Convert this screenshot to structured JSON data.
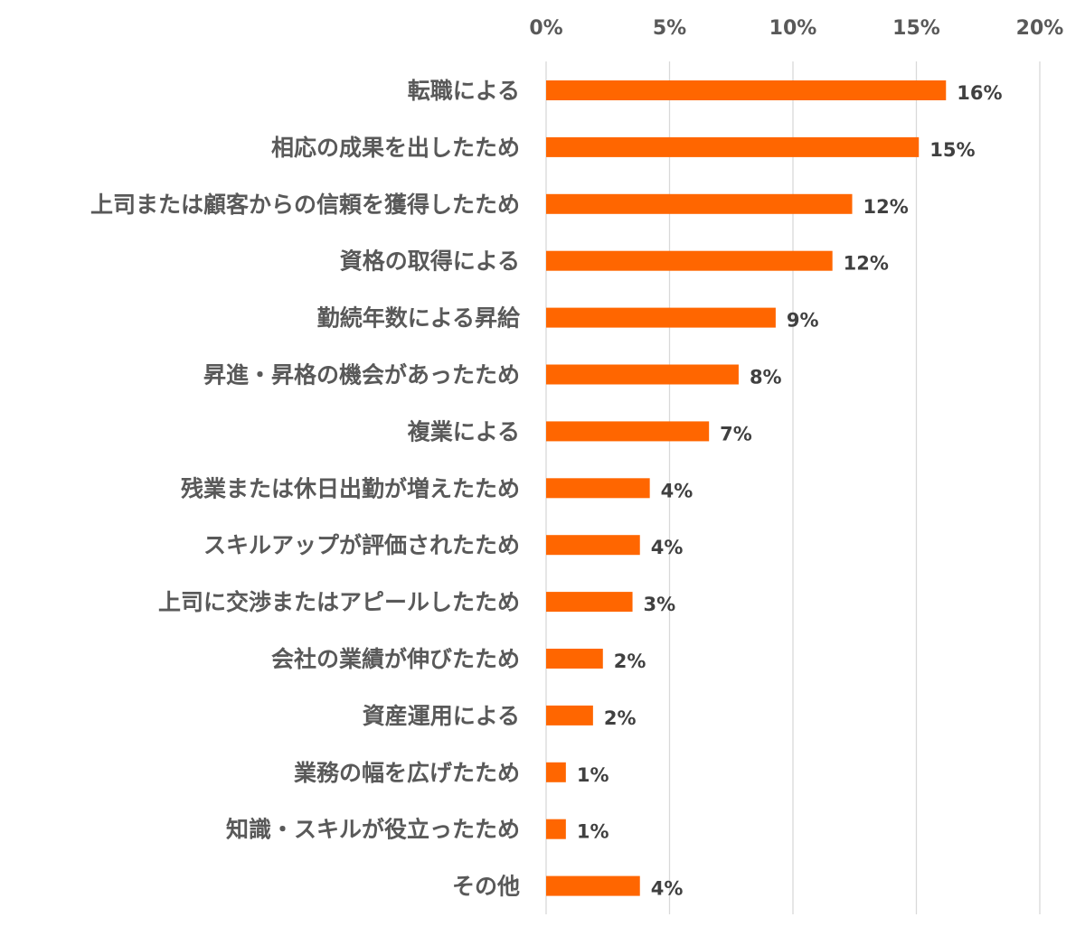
{
  "chart_data": {
    "type": "bar",
    "orientation": "horizontal",
    "title": "",
    "xlabel": "",
    "ylabel": "",
    "xlim": [
      0,
      20
    ],
    "x_ticks": [
      0,
      5,
      10,
      15,
      20
    ],
    "x_tick_labels": [
      "0%",
      "5%",
      "10%",
      "15%",
      "20%"
    ],
    "x_axis_position": "top",
    "grid": true,
    "bar_color": "#FF6600",
    "categories": [
      "転職による",
      "相応の成果を出したため",
      "上司または顧客からの信頼を獲得したため",
      "資格の取得による",
      "勤続年数による昇給",
      "昇進・昇格の機会があったため",
      "複業による",
      "残業または休日出勤が増えたため",
      "スキルアップが評価されたため",
      "上司に交渉またはアピールしたため",
      "会社の業績が伸びたため",
      "資産運用による",
      "業務の幅を広げたため",
      "知識・スキルが役立ったため",
      "その他"
    ],
    "values": [
      16.2,
      15.1,
      12.4,
      11.6,
      9.3,
      7.8,
      6.6,
      4.2,
      3.8,
      3.5,
      2.3,
      1.9,
      0.8,
      0.8,
      3.8
    ],
    "data_labels": [
      "16%",
      "15%",
      "12%",
      "12%",
      "9%",
      "8%",
      "7%",
      "4%",
      "4%",
      "3%",
      "2%",
      "2%",
      "1%",
      "1%",
      "4%"
    ]
  }
}
